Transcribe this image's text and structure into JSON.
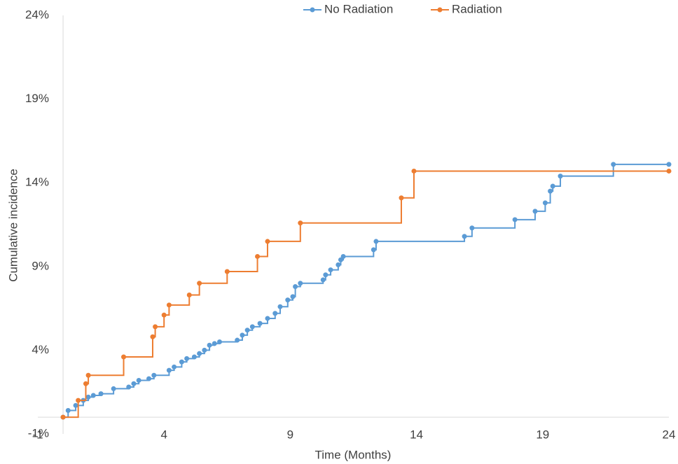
{
  "chart_data": {
    "type": "line",
    "step": true,
    "markers": true,
    "x_label": "Time (Months)",
    "y_label": "Cumulative incidence",
    "legend": "top",
    "xlim": [
      -1,
      24
    ],
    "xticks": [
      -1,
      4,
      9,
      14,
      19,
      24
    ],
    "ylim": [
      -1,
      24
    ],
    "yticks": [
      {
        "value": -1,
        "label": "-1%"
      },
      {
        "value": 4,
        "label": "4%"
      },
      {
        "value": 9,
        "label": "9%"
      },
      {
        "value": 14,
        "label": "14%"
      },
      {
        "value": 19,
        "label": "19%"
      },
      {
        "value": 24,
        "label": "24%"
      }
    ],
    "series": [
      {
        "name": "No Radiation",
        "color": "#5b9bd5",
        "x": [
          0,
          0.2,
          0.5,
          0.8,
          1.0,
          1.2,
          1.5,
          2.0,
          2.6,
          2.8,
          3.0,
          3.4,
          3.6,
          4.2,
          4.4,
          4.7,
          4.9,
          5.2,
          5.4,
          5.6,
          5.8,
          6.0,
          6.2,
          6.9,
          7.1,
          7.3,
          7.5,
          7.8,
          8.1,
          8.4,
          8.6,
          8.9,
          9.1,
          9.2,
          9.4,
          10.3,
          10.4,
          10.6,
          10.9,
          11.0,
          11.1,
          12.3,
          12.4,
          15.9,
          16.2,
          17.9,
          18.7,
          19.1,
          19.3,
          19.4,
          19.7,
          21.8,
          24
        ],
        "values": [
          0,
          0.4,
          0.7,
          1.0,
          1.2,
          1.3,
          1.4,
          1.7,
          1.8,
          2.0,
          2.2,
          2.3,
          2.5,
          2.8,
          3.0,
          3.3,
          3.5,
          3.6,
          3.8,
          4.0,
          4.3,
          4.4,
          4.5,
          4.6,
          4.9,
          5.2,
          5.4,
          5.6,
          5.9,
          6.2,
          6.6,
          7.0,
          7.2,
          7.8,
          8.0,
          8.2,
          8.5,
          8.8,
          9.1,
          9.4,
          9.6,
          10.0,
          10.5,
          10.8,
          11.3,
          11.8,
          12.3,
          12.8,
          13.5,
          13.8,
          14.4,
          15.1,
          15.1
        ]
      },
      {
        "name": "Radiation",
        "color": "#ed7d31",
        "x": [
          0,
          0.6,
          0.9,
          1.0,
          2.4,
          3.55,
          3.65,
          4.0,
          4.2,
          5.0,
          5.4,
          6.5,
          7.7,
          8.1,
          9.4,
          13.4,
          13.9,
          24
        ],
        "values": [
          0,
          1.0,
          2.0,
          2.5,
          3.6,
          4.8,
          5.4,
          6.1,
          6.7,
          7.3,
          8.0,
          8.7,
          9.6,
          10.5,
          11.6,
          13.1,
          14.7,
          14.7
        ]
      }
    ]
  }
}
